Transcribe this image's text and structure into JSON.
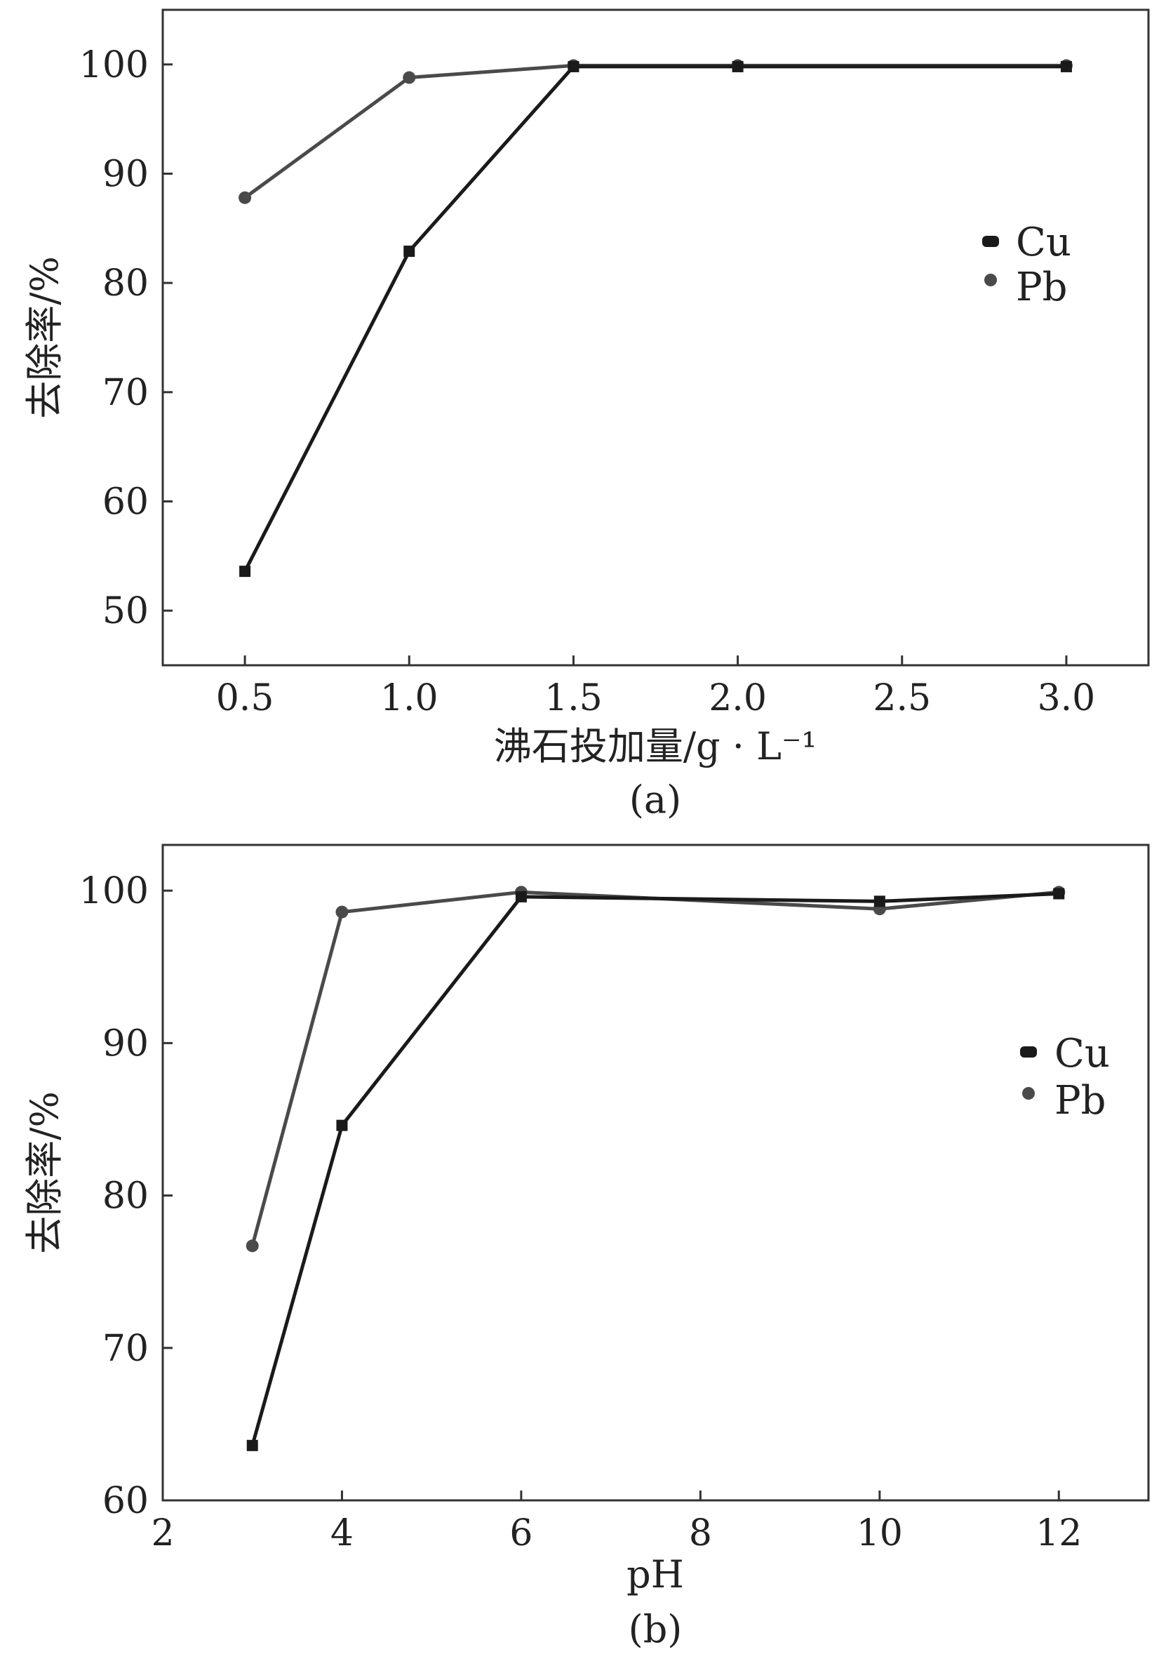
{
  "chart_data": [
    {
      "type": "line",
      "panel_label": "(a)",
      "xlabel": "沸石投加量/g · L⁻¹",
      "ylabel": "去除率/%",
      "xlim": [
        0.25,
        3.25
      ],
      "ylim": [
        45,
        105
      ],
      "xticks": [
        0.5,
        1.0,
        1.5,
        2.0,
        2.5,
        3.0
      ],
      "xtick_labels": [
        "0.5",
        "1.0",
        "1.5",
        "2.0",
        "2.5",
        "3.0"
      ],
      "yticks": [
        50,
        60,
        70,
        80,
        90,
        100
      ],
      "ytick_labels": [
        "50",
        "60",
        "70",
        "80",
        "90",
        "100"
      ],
      "legend_position": "center-right",
      "series": [
        {
          "name": "Cu",
          "marker": "square",
          "color": "#1a1a1a",
          "x": [
            0.5,
            1.0,
            1.5,
            2.0,
            3.0
          ],
          "y": [
            53.6,
            82.9,
            99.8,
            99.8,
            99.8
          ]
        },
        {
          "name": "Pb",
          "marker": "circle",
          "color": "#4a4a4a",
          "x": [
            0.5,
            1.0,
            1.5,
            2.0,
            3.0
          ],
          "y": [
            87.8,
            98.8,
            99.9,
            99.9,
            99.9
          ]
        }
      ]
    },
    {
      "type": "line",
      "panel_label": "(b)",
      "xlabel": "pH",
      "ylabel": "去除率/%",
      "xlim": [
        2,
        13
      ],
      "ylim": [
        60,
        103
      ],
      "xticks": [
        2,
        4,
        6,
        8,
        10,
        12
      ],
      "xtick_labels": [
        "2",
        "4",
        "6",
        "8",
        "10",
        "12"
      ],
      "yticks": [
        60,
        70,
        80,
        90,
        100
      ],
      "ytick_labels": [
        "60",
        "70",
        "80",
        "90",
        "100"
      ],
      "legend_position": "center-right",
      "series": [
        {
          "name": "Cu",
          "marker": "square",
          "color": "#1a1a1a",
          "x": [
            3,
            4,
            6,
            10,
            12
          ],
          "y": [
            63.6,
            84.6,
            99.6,
            99.3,
            99.8
          ]
        },
        {
          "name": "Pb",
          "marker": "circle",
          "color": "#4a4a4a",
          "x": [
            3,
            4,
            6,
            10,
            12
          ],
          "y": [
            76.7,
            98.6,
            99.9,
            98.8,
            99.9
          ]
        }
      ]
    }
  ]
}
